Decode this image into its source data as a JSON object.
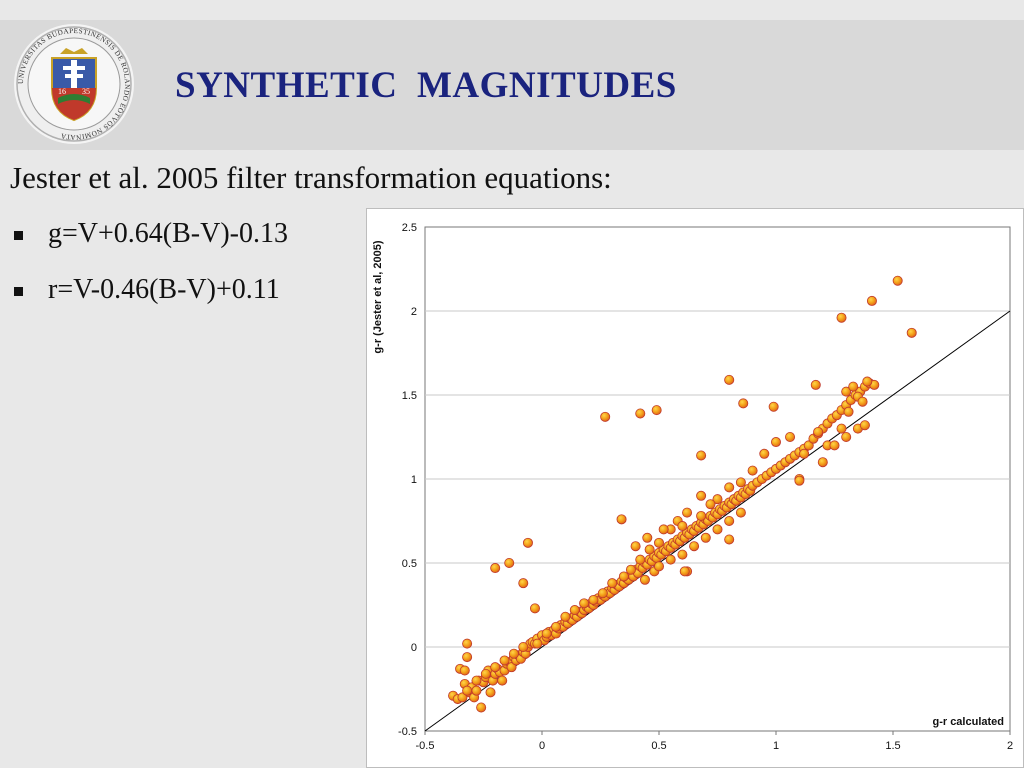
{
  "slide": {
    "title": "SYNTHETIC  MAGNITUDES",
    "intro": "Jester et al. 2005 filter transformation equations:",
    "bullets": [
      {
        "text": "g=V+0.64(B-V)-0.13"
      },
      {
        "text": "r=V-0.46(B-V)+0.11"
      }
    ],
    "logo": {
      "ring_text": "UNIVERSITAS BUDAPESTINENSIS DE ROLANDO EÖTVÖS NOMINATA",
      "year_left": "16",
      "year_right": "35"
    }
  },
  "colors": {
    "title": "#1a237e",
    "marker_fill": "#f4a21a",
    "marker_inner": "#ff8c00",
    "marker_edge": "#c0392b",
    "grid": "#c8c8c8",
    "band": "#d9d9d9",
    "background": "#e8e8e8"
  },
  "chart_data": {
    "type": "scatter",
    "title": "",
    "xlabel": "g-r calculated",
    "ylabel": "g-r (Jester et al, 2005)",
    "xlim": [
      -0.5,
      2
    ],
    "ylim": [
      -0.5,
      2.5
    ],
    "xticks": [
      "-0.5",
      "0",
      "0.5",
      "1",
      "1.5",
      "2"
    ],
    "yticks": [
      "-0.5",
      "0",
      "0.5",
      "1",
      "1.5",
      "2",
      "2.5"
    ],
    "grid": "horizontal",
    "reference_line": {
      "name": "y = x",
      "from": [
        -0.5,
        -0.5
      ],
      "to": [
        2,
        2
      ]
    },
    "series": [
      {
        "points": [
          [
            -0.38,
            -0.29
          ],
          [
            -0.36,
            -0.31
          ],
          [
            -0.34,
            -0.3
          ],
          [
            -0.35,
            -0.13
          ],
          [
            -0.33,
            -0.14
          ],
          [
            -0.32,
            0.02
          ],
          [
            -0.32,
            -0.06
          ],
          [
            -0.33,
            -0.22
          ],
          [
            -0.31,
            -0.27
          ],
          [
            -0.3,
            -0.24
          ],
          [
            -0.29,
            -0.3
          ],
          [
            -0.28,
            -0.26
          ],
          [
            -0.27,
            -0.2
          ],
          [
            -0.26,
            -0.36
          ],
          [
            -0.25,
            -0.21
          ],
          [
            -0.24,
            -0.18
          ],
          [
            -0.23,
            -0.14
          ],
          [
            -0.22,
            -0.27
          ],
          [
            -0.21,
            -0.2
          ],
          [
            -0.2,
            -0.16
          ],
          [
            -0.19,
            -0.13
          ],
          [
            -0.18,
            -0.15
          ],
          [
            -0.17,
            -0.2
          ],
          [
            -0.16,
            -0.14
          ],
          [
            -0.15,
            -0.1
          ],
          [
            -0.14,
            -0.09
          ],
          [
            -0.13,
            -0.12
          ],
          [
            -0.12,
            -0.06
          ],
          [
            -0.11,
            -0.08
          ],
          [
            -0.1,
            -0.05
          ],
          [
            -0.09,
            -0.07
          ],
          [
            -0.08,
            -0.03
          ],
          [
            -0.07,
            -0.04
          ],
          [
            -0.06,
            0.0
          ],
          [
            -0.05,
            0.02
          ],
          [
            -0.04,
            0.03
          ],
          [
            -0.03,
            0.02
          ],
          [
            -0.02,
            0.05
          ],
          [
            0.0,
            0.07
          ],
          [
            0.01,
            0.04
          ],
          [
            0.02,
            0.06
          ],
          [
            0.03,
            0.09
          ],
          [
            0.04,
            0.07
          ],
          [
            0.05,
            0.1
          ],
          [
            0.06,
            0.08
          ],
          [
            0.07,
            0.11
          ],
          [
            0.08,
            0.13
          ],
          [
            0.09,
            0.12
          ],
          [
            0.1,
            0.15
          ],
          [
            0.11,
            0.14
          ],
          [
            0.12,
            0.17
          ],
          [
            0.13,
            0.16
          ],
          [
            0.14,
            0.19
          ],
          [
            0.15,
            0.18
          ],
          [
            0.16,
            0.21
          ],
          [
            0.17,
            0.2
          ],
          [
            0.18,
            0.22
          ],
          [
            0.19,
            0.24
          ],
          [
            0.2,
            0.23
          ],
          [
            0.21,
            0.26
          ],
          [
            0.22,
            0.25
          ],
          [
            0.23,
            0.27
          ],
          [
            0.24,
            0.29
          ],
          [
            0.25,
            0.28
          ],
          [
            0.26,
            0.31
          ],
          [
            0.27,
            0.3
          ],
          [
            0.28,
            0.33
          ],
          [
            0.29,
            0.32
          ],
          [
            0.3,
            0.35
          ],
          [
            0.31,
            0.34
          ],
          [
            0.32,
            0.37
          ],
          [
            0.33,
            0.36
          ],
          [
            0.34,
            0.39
          ],
          [
            0.35,
            0.38
          ],
          [
            0.36,
            0.41
          ],
          [
            0.37,
            0.4
          ],
          [
            0.38,
            0.43
          ],
          [
            0.39,
            0.42
          ],
          [
            0.4,
            0.46
          ],
          [
            0.41,
            0.44
          ],
          [
            0.42,
            0.48
          ],
          [
            0.43,
            0.47
          ],
          [
            0.44,
            0.5
          ],
          [
            0.45,
            0.49
          ],
          [
            0.46,
            0.52
          ],
          [
            0.47,
            0.51
          ],
          [
            0.48,
            0.54
          ],
          [
            0.49,
            0.53
          ],
          [
            0.5,
            0.56
          ],
          [
            0.51,
            0.55
          ],
          [
            0.52,
            0.58
          ],
          [
            0.53,
            0.57
          ],
          [
            0.54,
            0.6
          ],
          [
            0.55,
            0.59
          ],
          [
            0.56,
            0.62
          ],
          [
            0.57,
            0.61
          ],
          [
            0.58,
            0.64
          ],
          [
            0.59,
            0.63
          ],
          [
            0.6,
            0.66
          ],
          [
            0.61,
            0.65
          ],
          [
            0.62,
            0.68
          ],
          [
            0.63,
            0.67
          ],
          [
            0.64,
            0.7
          ],
          [
            0.65,
            0.69
          ],
          [
            0.66,
            0.72
          ],
          [
            0.67,
            0.71
          ],
          [
            0.68,
            0.74
          ],
          [
            0.69,
            0.73
          ],
          [
            0.7,
            0.76
          ],
          [
            0.71,
            0.75
          ],
          [
            0.72,
            0.78
          ],
          [
            0.73,
            0.77
          ],
          [
            0.74,
            0.8
          ],
          [
            0.75,
            0.79
          ],
          [
            0.76,
            0.82
          ],
          [
            0.77,
            0.81
          ],
          [
            0.78,
            0.84
          ],
          [
            0.79,
            0.83
          ],
          [
            0.8,
            0.86
          ],
          [
            0.81,
            0.85
          ],
          [
            0.82,
            0.88
          ],
          [
            0.83,
            0.87
          ],
          [
            0.84,
            0.9
          ],
          [
            0.85,
            0.89
          ],
          [
            0.86,
            0.92
          ],
          [
            0.87,
            0.91
          ],
          [
            0.88,
            0.94
          ],
          [
            0.89,
            0.93
          ],
          [
            0.9,
            0.96
          ],
          [
            0.92,
            0.98
          ],
          [
            0.94,
            1.0
          ],
          [
            0.96,
            1.02
          ],
          [
            0.98,
            1.04
          ],
          [
            1.0,
            1.06
          ],
          [
            1.02,
            1.08
          ],
          [
            1.04,
            1.1
          ],
          [
            1.06,
            1.12
          ],
          [
            1.08,
            1.14
          ],
          [
            1.1,
            1.16
          ],
          [
            1.12,
            1.18
          ],
          [
            1.14,
            1.2
          ],
          [
            1.16,
            1.24
          ],
          [
            1.18,
            1.27
          ],
          [
            1.2,
            1.3
          ],
          [
            1.22,
            1.33
          ],
          [
            1.24,
            1.36
          ],
          [
            1.26,
            1.38
          ],
          [
            1.28,
            1.41
          ],
          [
            1.3,
            1.44
          ],
          [
            1.32,
            1.47
          ],
          [
            1.34,
            1.5
          ],
          [
            1.36,
            1.52
          ],
          [
            1.38,
            1.55
          ],
          [
            1.4,
            1.57
          ],
          [
            1.42,
            1.56
          ],
          [
            1.3,
            1.52
          ],
          [
            1.33,
            1.55
          ],
          [
            1.35,
            1.49
          ],
          [
            1.37,
            1.46
          ],
          [
            1.39,
            1.58
          ],
          [
            1.31,
            1.4
          ],
          [
            1.28,
            1.3
          ],
          [
            1.22,
            1.2
          ],
          [
            1.18,
            1.28
          ],
          [
            1.12,
            1.15
          ],
          [
            1.06,
            1.25
          ],
          [
            1.0,
            1.22
          ],
          [
            0.95,
            1.15
          ],
          [
            0.9,
            1.05
          ],
          [
            0.85,
            0.98
          ],
          [
            0.8,
            0.95
          ],
          [
            0.75,
            0.88
          ],
          [
            0.72,
            0.85
          ],
          [
            0.68,
            0.9
          ],
          [
            0.62,
            0.8
          ],
          [
            0.58,
            0.75
          ],
          [
            0.55,
            0.7
          ],
          [
            0.5,
            0.62
          ],
          [
            0.46,
            0.58
          ],
          [
            0.42,
            0.52
          ],
          [
            0.38,
            0.46
          ],
          [
            0.35,
            0.42
          ],
          [
            0.3,
            0.38
          ],
          [
            0.26,
            0.32
          ],
          [
            0.22,
            0.28
          ],
          [
            0.18,
            0.26
          ],
          [
            0.14,
            0.22
          ],
          [
            0.1,
            0.18
          ],
          [
            0.06,
            0.12
          ],
          [
            0.02,
            0.08
          ],
          [
            -0.02,
            0.02
          ],
          [
            -0.08,
            0.0
          ],
          [
            -0.12,
            -0.04
          ],
          [
            -0.16,
            -0.08
          ],
          [
            -0.2,
            -0.12
          ],
          [
            -0.24,
            -0.16
          ],
          [
            -0.28,
            -0.2
          ],
          [
            -0.32,
            -0.26
          ],
          [
            0.6,
            0.55
          ],
          [
            0.65,
            0.6
          ],
          [
            0.7,
            0.65
          ],
          [
            0.75,
            0.7
          ],
          [
            0.8,
            0.75
          ],
          [
            0.85,
            0.8
          ],
          [
            0.55,
            0.52
          ],
          [
            0.48,
            0.45
          ],
          [
            0.44,
            0.4
          ],
          [
            0.62,
            0.45
          ],
          [
            0.5,
            0.48
          ],
          [
            0.4,
            0.6
          ],
          [
            0.45,
            0.65
          ],
          [
            0.6,
            0.72
          ],
          [
            0.68,
            0.78
          ],
          [
            0.52,
            0.7
          ],
          [
            1.1,
            1.0
          ],
          [
            1.2,
            1.1
          ],
          [
            1.3,
            1.25
          ],
          [
            1.35,
            1.3
          ],
          [
            1.38,
            1.32
          ],
          [
            1.25,
            1.2
          ],
          [
            -0.2,
            0.47
          ],
          [
            -0.14,
            0.5
          ],
          [
            -0.08,
            0.38
          ],
          [
            -0.06,
            0.62
          ],
          [
            -0.03,
            0.23
          ],
          [
            0.27,
            1.37
          ],
          [
            0.42,
            1.39
          ],
          [
            0.49,
            1.41
          ],
          [
            0.34,
            0.76
          ],
          [
            0.8,
            1.59
          ],
          [
            0.86,
            1.45
          ],
          [
            0.99,
            1.43
          ],
          [
            1.1,
            0.99
          ],
          [
            1.17,
            1.56
          ],
          [
            1.28,
            1.96
          ],
          [
            1.41,
            2.06
          ],
          [
            1.52,
            2.18
          ],
          [
            1.58,
            1.87
          ],
          [
            0.68,
            1.14
          ],
          [
            0.8,
            0.64
          ],
          [
            0.61,
            0.45
          ]
        ]
      }
    ]
  }
}
